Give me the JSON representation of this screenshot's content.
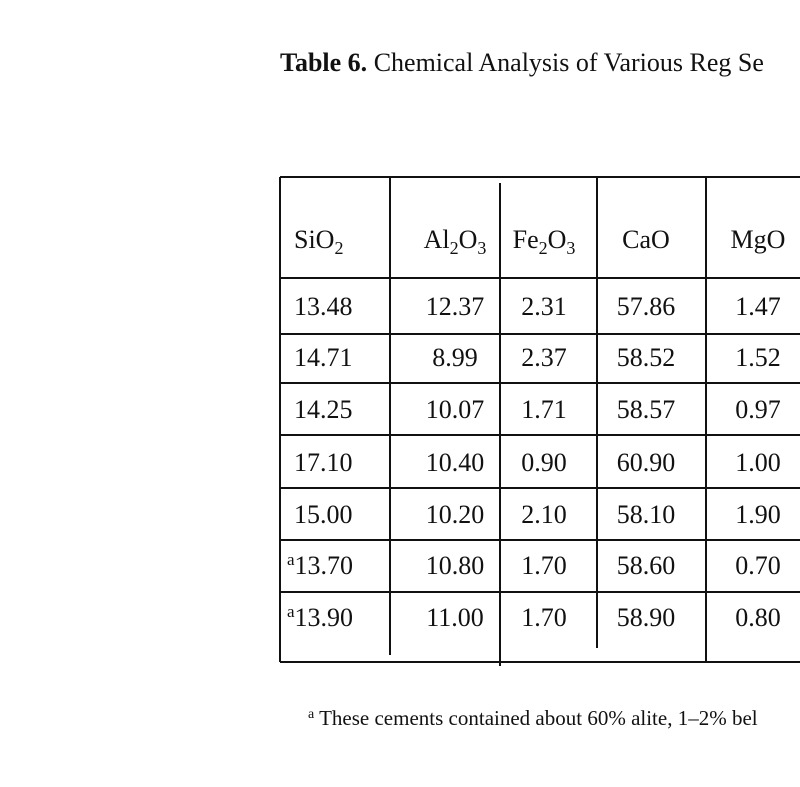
{
  "title": {
    "label": "Table 6.",
    "text": "Chemical Analysis of Various Reg Se"
  },
  "table": {
    "headers": [
      [
        "SiO",
        "2"
      ],
      [
        "Al",
        "2",
        "O",
        "3"
      ],
      [
        "Fe",
        "2",
        "O",
        "3"
      ],
      [
        "CaO"
      ],
      [
        "MgO"
      ]
    ],
    "rows": [
      [
        "13.48",
        "12.37",
        "2.31",
        "57.86",
        "1.47"
      ],
      [
        "14.71",
        "8.99",
        "2.37",
        "58.52",
        "1.52"
      ],
      [
        "14.25",
        "10.07",
        "1.71",
        "58.57",
        "0.97"
      ],
      [
        "17.10",
        "10.40",
        "0.90",
        "60.90",
        "1.00"
      ],
      [
        "15.00",
        "10.20",
        "2.10",
        "58.10",
        "1.90"
      ],
      [
        {
          "note": "a",
          "value": "13.70"
        },
        "10.80",
        "1.70",
        "58.60",
        "0.70"
      ],
      [
        {
          "note": "a",
          "value": "13.90"
        },
        "11.00",
        "1.70",
        "58.90",
        "0.80"
      ]
    ]
  },
  "footnote": {
    "marker": "a",
    "text": "These cements contained about 60% alite, 1–2% bel"
  }
}
